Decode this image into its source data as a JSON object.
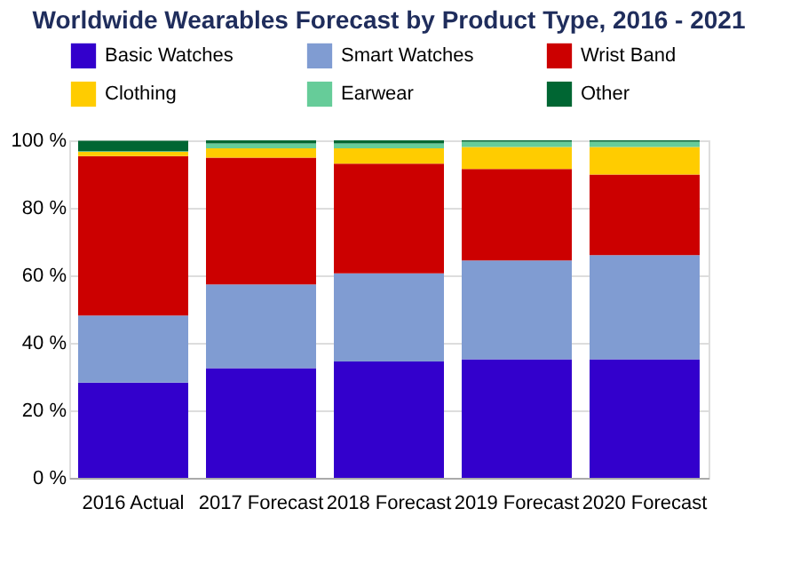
{
  "chart_data": {
    "type": "bar",
    "title": "Worldwide Wearables Forecast by Product Type, 2016 - 2021",
    "categories": [
      "2016 Actual",
      "2017 Forecast",
      "2018 Forecast",
      "2019 Forecast",
      "2020 Forecast"
    ],
    "stacked": true,
    "ylim": [
      0,
      100
    ],
    "yticks": [
      {
        "value": 0,
        "label": "0 %"
      },
      {
        "value": 20,
        "label": "20 %"
      },
      {
        "value": 40,
        "label": "40 %"
      },
      {
        "value": 60,
        "label": "60 %"
      },
      {
        "value": 80,
        "label": "80 %"
      },
      {
        "value": 100,
        "label": "100 %"
      }
    ],
    "grid": "y",
    "legend": "top",
    "series": [
      {
        "name": "Basic Watches",
        "color": "#3300cc",
        "values": [
          28.2,
          32.5,
          34.5,
          35.1,
          35.1
        ]
      },
      {
        "name": "Smart Watches",
        "color": "#809cd2",
        "values": [
          19.9,
          24.8,
          26.1,
          29.3,
          30.9
        ]
      },
      {
        "name": "Wrist Band",
        "color": "#cc0000",
        "values": [
          47.2,
          37.6,
          32.5,
          27.1,
          23.9
        ]
      },
      {
        "name": "Clothing",
        "color": "#ffcc00",
        "values": [
          1.3,
          2.7,
          4.5,
          6.5,
          8.1
        ]
      },
      {
        "name": "Earwear",
        "color": "#66cc99",
        "values": [
          0.2,
          1.5,
          1.5,
          1.6,
          1.6
        ]
      },
      {
        "name": "Other",
        "color": "#006633",
        "values": [
          3.1,
          0.9,
          0.9,
          0.4,
          0.4
        ]
      }
    ]
  }
}
